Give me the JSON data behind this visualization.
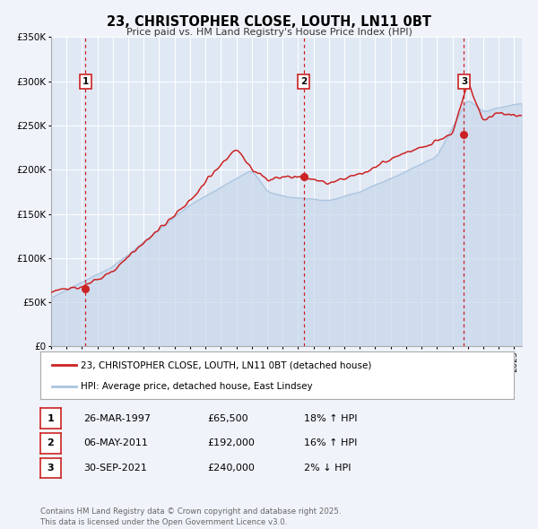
{
  "title": "23, CHRISTOPHER CLOSE, LOUTH, LN11 0BT",
  "subtitle": "Price paid vs. HM Land Registry's House Price Index (HPI)",
  "legend_line1": "23, CHRISTOPHER CLOSE, LOUTH, LN11 0BT (detached house)",
  "legend_line2": "HPI: Average price, detached house, East Lindsey",
  "sale1_date": "26-MAR-1997",
  "sale1_price": 65500,
  "sale1_hpi": "18% ↑ HPI",
  "sale2_date": "06-MAY-2011",
  "sale2_price": 192000,
  "sale2_hpi": "16% ↑ HPI",
  "sale3_date": "30-SEP-2021",
  "sale3_price": 240000,
  "sale3_hpi": "2% ↓ HPI",
  "sale1_x": 1997.23,
  "sale2_x": 2011.37,
  "sale3_x": 2021.75,
  "hpi_line_color": "#aac4e0",
  "hpi_fill_color": "#c8d8ec",
  "price_line_color": "#cc2222",
  "dot_color": "#cc2222",
  "vline_color": "#cc0000",
  "bg_color": "#f0f4fa",
  "plot_bg": "#e0e8f4",
  "grid_color": "#ffffff",
  "ylim_min": 0,
  "ylim_max": 350000,
  "xlim_min": 1995.0,
  "xlim_max": 2025.5,
  "footer": "Contains HM Land Registry data © Crown copyright and database right 2025.\nThis data is licensed under the Open Government Licence v3.0."
}
